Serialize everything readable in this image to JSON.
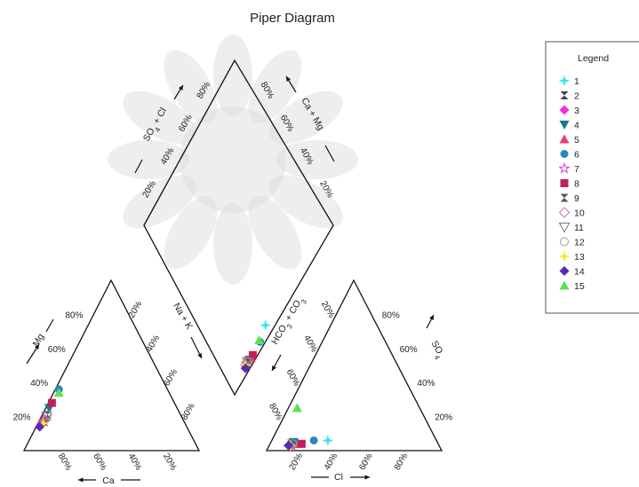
{
  "chart_data": {
    "type": "scatter",
    "chart_kind": "piper",
    "title": "Piper Diagram",
    "legend": {
      "title": "Legend",
      "placement": "right"
    },
    "axes": {
      "cation_bottom_label": "Ca",
      "cation_left_label": "Mg",
      "cation_right_label": "Na + K",
      "anion_bottom_label": "Cl",
      "anion_right_label": "SO",
      "anion_right_sub": "4",
      "anion_left_label": "HCO",
      "anion_left_sub1": "3",
      "anion_left_mid": " + CO",
      "anion_left_sub2": "3",
      "diamond_left_label": "SO",
      "diamond_left_sub": "4",
      "diamond_left_tail": " + Cl",
      "diamond_right_label": "Ca + Mg"
    },
    "ticks": [
      "20%",
      "40%",
      "60%",
      "80%"
    ],
    "series": [
      {
        "name": "1",
        "color": "#33e6f2",
        "marker": "star4",
        "cation": {
          "ca": 78,
          "mg": 18,
          "na": 4
        },
        "anion": {
          "hco": 62,
          "so4": 6,
          "cl": 32
        }
      },
      {
        "name": "2",
        "color": "#444444",
        "marker": "hourglass",
        "cation": {
          "ca": 80,
          "mg": 17,
          "na": 3
        },
        "anion": {
          "hco": 82,
          "so4": 4,
          "cl": 14
        }
      },
      {
        "name": "3",
        "color": "#ee33dd",
        "marker": "diamond",
        "cation": {
          "ca": 82,
          "mg": 16,
          "na": 2
        },
        "anion": {
          "hco": 86,
          "so4": 3,
          "cl": 11
        }
      },
      {
        "name": "4",
        "color": "#127a8a",
        "marker": "tri-down",
        "cation": {
          "ca": 73,
          "mg": 25,
          "na": 2
        },
        "anion": {
          "hco": 82,
          "so4": 5,
          "cl": 13
        }
      },
      {
        "name": "5",
        "color": "#e5426c",
        "marker": "tri-up",
        "cation": {
          "ca": 79,
          "mg": 19,
          "na": 2
        },
        "anion": {
          "hco": 80,
          "so4": 4,
          "cl": 16
        }
      },
      {
        "name": "6",
        "color": "#2b86b8",
        "marker": "circle",
        "cation": {
          "ca": 62,
          "mg": 36,
          "na": 2
        },
        "anion": {
          "hco": 70,
          "so4": 6,
          "cl": 24
        }
      },
      {
        "name": "7",
        "color": "#d63bd6",
        "marker": "star-open",
        "cation": {
          "ca": 80,
          "mg": 17,
          "na": 3
        },
        "anion": {
          "hco": 84,
          "so4": 3,
          "cl": 13
        }
      },
      {
        "name": "8",
        "color": "#c0205a",
        "marker": "square",
        "cation": {
          "ca": 70,
          "mg": 28,
          "na": 2
        },
        "anion": {
          "hco": 78,
          "so4": 4,
          "cl": 18
        }
      },
      {
        "name": "9",
        "color": "#555555",
        "marker": "hourglass",
        "cation": {
          "ca": 76,
          "mg": 21,
          "na": 3
        },
        "anion": {
          "hco": 84,
          "so4": 4,
          "cl": 12
        }
      },
      {
        "name": "10",
        "color": "#d070b0",
        "marker": "diamond-open",
        "cation": {
          "ca": 79,
          "mg": 18,
          "na": 3
        },
        "anion": {
          "hco": 85,
          "so4": 3,
          "cl": 12
        }
      },
      {
        "name": "11",
        "color": "#777777",
        "marker": "tri-down-open",
        "cation": {
          "ca": 77,
          "mg": 20,
          "na": 3
        },
        "anion": {
          "hco": 83,
          "so4": 4,
          "cl": 13
        }
      },
      {
        "name": "12",
        "color": "#999999",
        "marker": "circle-open",
        "cation": {
          "ca": 76,
          "mg": 21,
          "na": 3
        },
        "anion": {
          "hco": 83,
          "so4": 4,
          "cl": 13
        }
      },
      {
        "name": "13",
        "color": "#f0f020",
        "marker": "star4",
        "cation": {
          "ca": 81,
          "mg": 16,
          "na": 3
        },
        "anion": {
          "hco": 85,
          "so4": 3,
          "cl": 12
        }
      },
      {
        "name": "14",
        "color": "#5a2bb8",
        "marker": "diamond",
        "cation": {
          "ca": 84,
          "mg": 14,
          "na": 2
        },
        "anion": {
          "hco": 86,
          "so4": 3,
          "cl": 11
        }
      },
      {
        "name": "15",
        "color": "#5fe05a",
        "marker": "tri-up",
        "cation": {
          "ca": 63,
          "mg": 34,
          "na": 3
        },
        "anion": {
          "hco": 70,
          "so4": 25,
          "cl": 5
        }
      }
    ]
  }
}
